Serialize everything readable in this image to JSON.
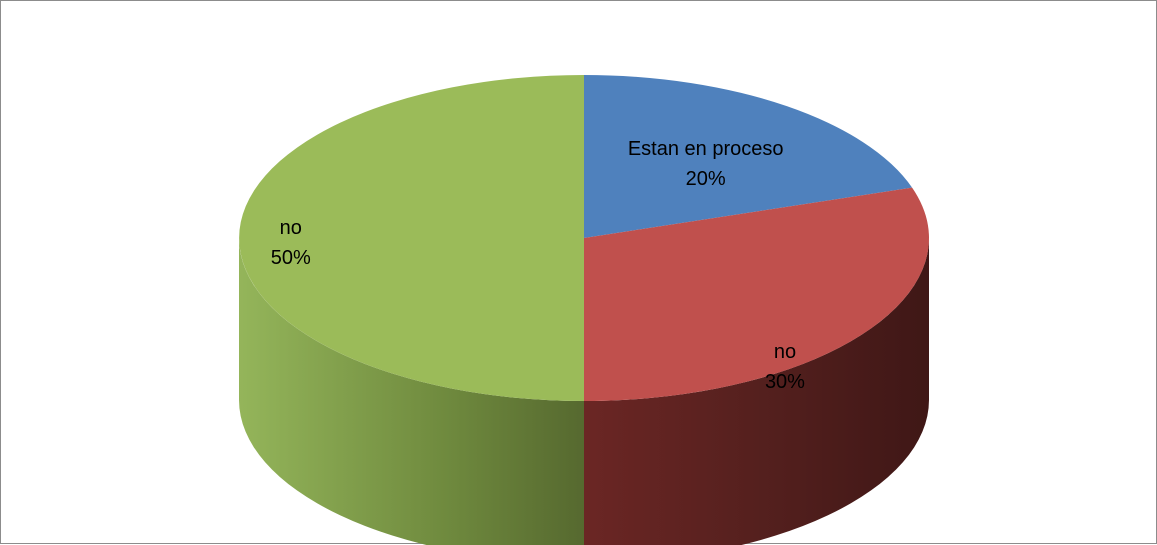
{
  "chart_data": {
    "type": "pie",
    "style": "3d",
    "legend": "none",
    "slices": [
      {
        "name": "Estan en proceso",
        "value": 20,
        "percent_label": "20%",
        "color": "#4F81BD"
      },
      {
        "name": "no",
        "value": 30,
        "percent_label": "30%",
        "color": "#C0504D"
      },
      {
        "name": "no",
        "value": 50,
        "percent_label": "50%",
        "color": "#9BBB59"
      }
    ]
  }
}
